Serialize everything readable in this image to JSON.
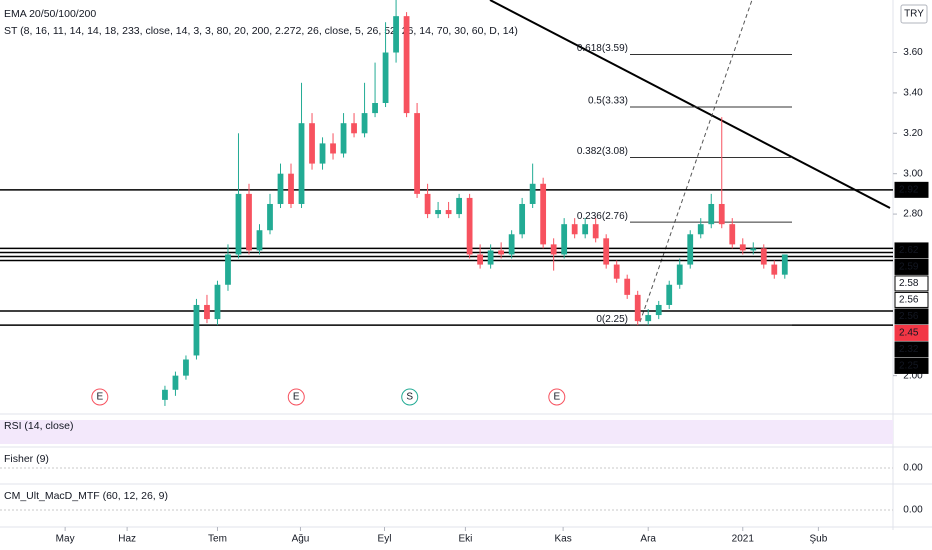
{
  "chart_data": {
    "type": "candlestick",
    "title": "EMA 20/50/100/200",
    "subtitle": "ST (8, 16, 11, 14, 14, 18, 233, close, 14, 3, 3, 80, 20, 200, 2.272, 26, close, 5, 26, 52, 26, 14, 70, 30, 60, D, 14)",
    "currency": "TRY",
    "up_color": "#22ab94",
    "down_color": "#f7525f",
    "open": [
      1.88,
      1.93,
      2.0,
      2.1,
      2.35,
      2.28,
      2.45,
      2.6,
      2.9,
      2.62,
      2.72,
      2.85,
      3.0,
      2.85,
      3.25,
      3.05,
      3.15,
      3.1,
      3.25,
      3.2,
      3.3,
      3.35,
      3.6,
      3.78,
      3.3,
      2.9,
      2.8,
      2.82,
      2.8,
      2.88,
      2.6,
      2.55,
      2.62,
      2.6,
      2.7,
      2.85,
      2.95,
      2.65,
      2.6,
      2.75,
      2.7,
      2.75,
      2.68,
      2.55,
      2.48,
      2.4,
      2.27,
      2.3,
      2.35,
      2.45,
      2.55,
      2.7,
      2.75,
      2.85,
      2.75,
      2.65,
      2.62,
      2.63,
      2.55,
      2.5
    ],
    "high": [
      1.95,
      2.02,
      2.1,
      2.38,
      2.4,
      2.47,
      2.65,
      3.2,
      2.95,
      2.75,
      2.9,
      3.05,
      3.05,
      3.45,
      3.3,
      3.18,
      3.2,
      3.3,
      3.3,
      3.45,
      3.55,
      3.75,
      3.86,
      3.8,
      3.35,
      2.95,
      2.86,
      2.86,
      2.9,
      2.9,
      2.65,
      2.65,
      2.66,
      2.72,
      2.88,
      3.05,
      2.98,
      2.68,
      2.78,
      2.78,
      2.78,
      2.78,
      2.7,
      2.57,
      2.5,
      2.42,
      2.33,
      2.37,
      2.47,
      2.58,
      2.72,
      2.78,
      2.9,
      3.28,
      2.78,
      2.68,
      2.66,
      2.65,
      2.57,
      2.6
    ],
    "low": [
      1.85,
      1.9,
      1.98,
      2.08,
      2.26,
      2.25,
      2.42,
      2.58,
      2.6,
      2.6,
      2.7,
      2.83,
      2.83,
      2.83,
      3.02,
      3.02,
      3.07,
      3.08,
      3.18,
      3.18,
      3.28,
      3.33,
      3.55,
      3.28,
      2.88,
      2.78,
      2.78,
      2.78,
      2.78,
      2.58,
      2.53,
      2.53,
      2.58,
      2.58,
      2.68,
      2.83,
      2.63,
      2.52,
      2.58,
      2.68,
      2.68,
      2.66,
      2.53,
      2.46,
      2.38,
      2.25,
      2.25,
      2.28,
      2.33,
      2.43,
      2.53,
      2.68,
      2.73,
      2.73,
      2.63,
      2.6,
      2.6,
      2.53,
      2.48,
      2.48
    ],
    "close": [
      1.93,
      2.0,
      2.08,
      2.35,
      2.28,
      2.45,
      2.6,
      2.9,
      2.62,
      2.72,
      2.85,
      3.0,
      2.85,
      3.25,
      3.05,
      3.15,
      3.1,
      3.25,
      3.2,
      3.3,
      3.35,
      3.6,
      3.78,
      3.3,
      2.9,
      2.8,
      2.82,
      2.8,
      2.88,
      2.6,
      2.55,
      2.62,
      2.6,
      2.7,
      2.85,
      2.95,
      2.65,
      2.6,
      2.75,
      2.7,
      2.75,
      2.68,
      2.55,
      2.48,
      2.4,
      2.27,
      2.3,
      2.35,
      2.45,
      2.55,
      2.7,
      2.75,
      2.85,
      2.75,
      2.65,
      2.62,
      2.63,
      2.55,
      2.5,
      2.6
    ],
    "xlim": [
      -15.7,
      69.3
    ],
    "xticks": [
      {
        "value": -9.5,
        "label": "May"
      },
      {
        "value": -3.6,
        "label": "Haz"
      },
      {
        "value": 5,
        "label": "Tem"
      },
      {
        "value": 12.9,
        "label": "Ağu"
      },
      {
        "value": 20.9,
        "label": "Eyl"
      },
      {
        "value": 28.6,
        "label": "Eki"
      },
      {
        "value": 37.9,
        "label": "Kas"
      },
      {
        "value": 46,
        "label": "Ara"
      },
      {
        "value": 55,
        "label": "2021"
      },
      {
        "value": 62.2,
        "label": "Şub"
      }
    ],
    "ylim": [
      1.82,
      3.86
    ],
    "yticks": [
      {
        "value": 2,
        "label": "2.00"
      },
      {
        "value": 2.8,
        "label": "2.80"
      },
      {
        "value": 3,
        "label": "3.00"
      },
      {
        "value": 3.2,
        "label": "3.20"
      },
      {
        "value": 3.4,
        "label": "3.40"
      },
      {
        "value": 3.6,
        "label": "3.60"
      }
    ],
    "levels": [
      2.92,
      2.63,
      2.61,
      2.59,
      2.57,
      2.32,
      2.25
    ],
    "fib_levels": [
      {
        "value": 3.59,
        "label": "0.618(3.59)"
      },
      {
        "value": 3.33,
        "label": "0.5(3.33)"
      },
      {
        "value": 3.08,
        "label": "0.382(3.08)"
      },
      {
        "value": 2.76,
        "label": "0.236(2.76)"
      },
      {
        "value": 2.25,
        "label": "0(2.25)"
      }
    ],
    "price_labels": [
      2.92,
      2.62,
      2.59,
      2.58,
      2.56,
      2.56,
      2.45,
      2.32,
      2.25
    ],
    "price_label_colors": [
      "#000000",
      "#000000",
      "#000000",
      "#ffffff",
      "#ffffff",
      "#000000",
      "#f23645",
      "#000000",
      "#000000"
    ],
    "markers": [
      {
        "x": -6.2,
        "label": "E"
      },
      {
        "x": 12.5,
        "label": "E"
      },
      {
        "x": 23.3,
        "label": "S"
      },
      {
        "x": 37.3,
        "label": "E"
      }
    ],
    "panes": [
      {
        "title": "RSI (14, close)"
      },
      {
        "title": "Fisher (9)",
        "yticks": [
          {
            "value": 0,
            "label": "0.00"
          }
        ]
      },
      {
        "title": "CM_Ult_MacD_MTF (60, 12, 26, 9)",
        "yticks": [
          {
            "value": 0,
            "label": "0.00"
          }
        ]
      }
    ]
  }
}
